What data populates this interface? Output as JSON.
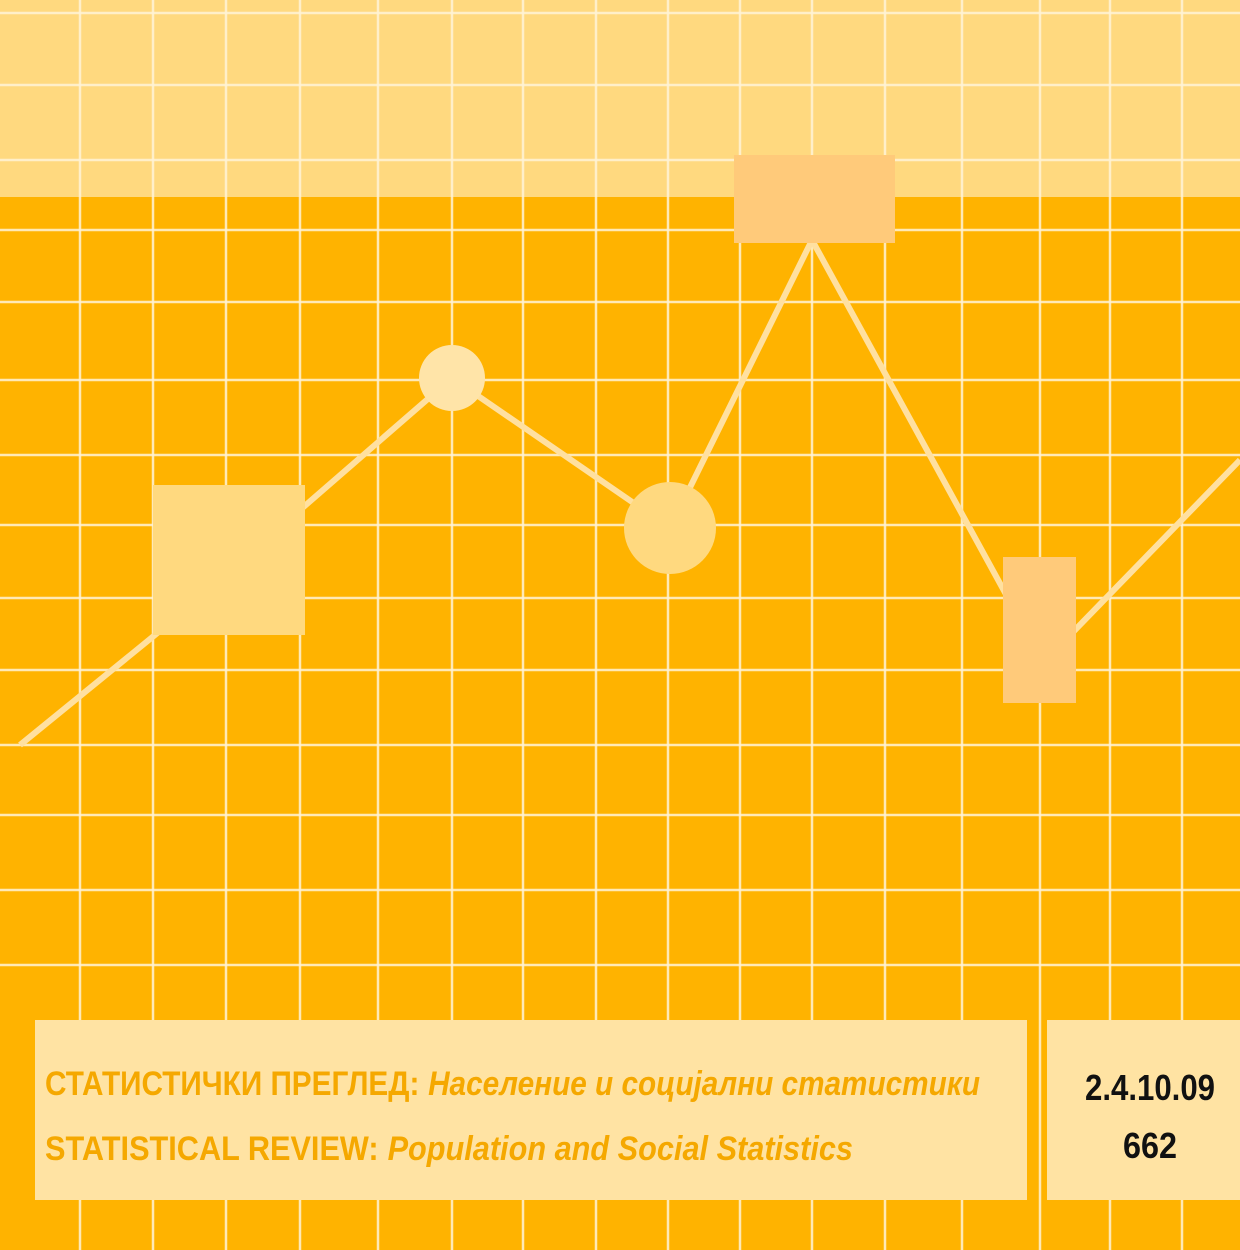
{
  "title_block": {
    "line1": {
      "label": "СТАТИСТИЧКИ ПРЕГЛЕД:",
      "subtitle": "Население и социјални статистики"
    },
    "line2": {
      "label": "STATISTICAL REVIEW:",
      "subtitle": "Population and Social Statistics"
    }
  },
  "code_block": {
    "code": "2.4.10.09",
    "number": "662"
  }
}
